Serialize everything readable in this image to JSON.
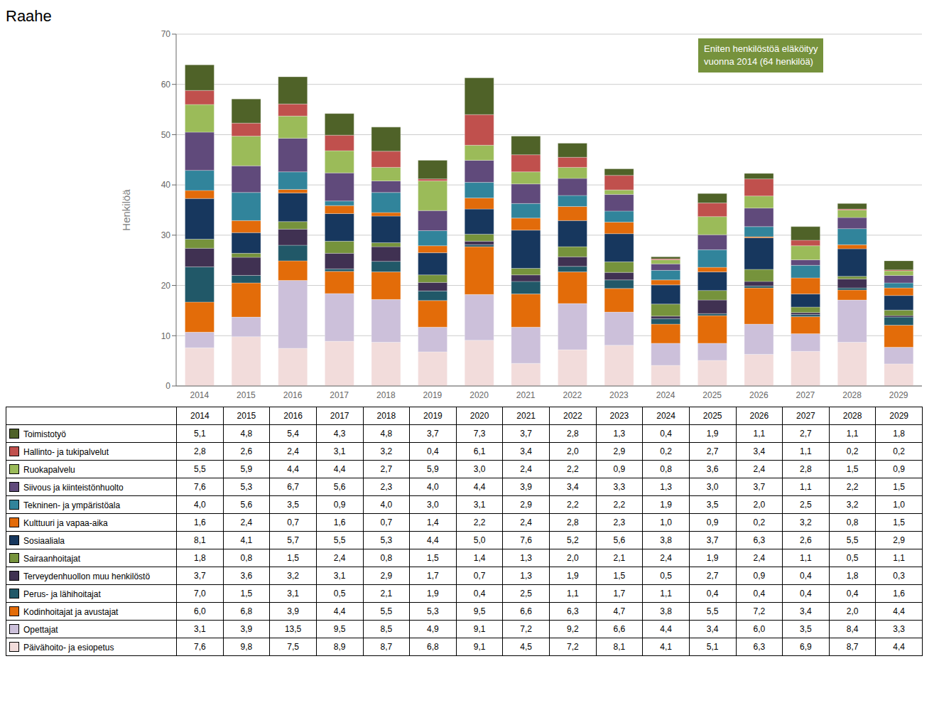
{
  "chart_data": {
    "type": "bar",
    "stacked": true,
    "title": "Raahe",
    "ylabel": "Henkilöä",
    "grid": true,
    "ylim": [
      0,
      70
    ],
    "yticks": [
      0,
      10,
      20,
      30,
      40,
      50,
      60,
      70
    ],
    "categories": [
      "2014",
      "2015",
      "2016",
      "2017",
      "2018",
      "2019",
      "2020",
      "2021",
      "2022",
      "2023",
      "2024",
      "2025",
      "2026",
      "2027",
      "2028",
      "2029"
    ],
    "annotations": [
      {
        "text": "Eniten henkilöstöä eläköityy\nvuonna 2014 (64 henkilöä)",
        "color": "#76923C"
      }
    ],
    "series": [
      {
        "name": "Toimistotyö",
        "color": "#4F6228",
        "values": [
          5.1,
          4.8,
          5.4,
          4.3,
          4.8,
          3.7,
          7.3,
          3.7,
          2.8,
          1.3,
          0.4,
          1.9,
          1.1,
          2.7,
          1.1,
          1.8
        ],
        "value_labels": [
          "5,1",
          "4,8",
          "5,4",
          "4,3",
          "4,8",
          "3,7",
          "7,3",
          "3,7",
          "2,8",
          "1,3",
          "0,4",
          "1,9",
          "1,1",
          "2,7",
          "1,1",
          "1,8"
        ]
      },
      {
        "name": "Hallinto- ja tukipalvelut",
        "color": "#C0504D",
        "values": [
          2.8,
          2.6,
          2.4,
          3.1,
          3.2,
          0.4,
          6.1,
          3.4,
          2.0,
          2.9,
          0.2,
          2.7,
          3.4,
          1.1,
          0.2,
          0.2
        ],
        "value_labels": [
          "2,8",
          "2,6",
          "2,4",
          "3,1",
          "3,2",
          "0,4",
          "6,1",
          "3,4",
          "2,0",
          "2,9",
          "0,2",
          "2,7",
          "3,4",
          "1,1",
          "0,2",
          "0,2"
        ]
      },
      {
        "name": "Ruokapalvelu",
        "color": "#9BBB59",
        "values": [
          5.5,
          5.9,
          4.4,
          4.4,
          2.7,
          5.9,
          3.0,
          2.4,
          2.2,
          0.9,
          0.8,
          3.6,
          2.4,
          2.8,
          1.5,
          0.9
        ],
        "value_labels": [
          "5,5",
          "5,9",
          "4,4",
          "4,4",
          "2,7",
          "5,9",
          "3,0",
          "2,4",
          "2,2",
          "0,9",
          "0,8",
          "3,6",
          "2,4",
          "2,8",
          "1,5",
          "0,9"
        ]
      },
      {
        "name": "Siivous ja kiinteistönhuolto",
        "color": "#604A7B",
        "values": [
          7.6,
          5.3,
          6.7,
          5.6,
          2.3,
          4.0,
          4.4,
          3.9,
          3.4,
          3.3,
          1.3,
          3.0,
          3.7,
          1.1,
          2.2,
          1.5
        ],
        "value_labels": [
          "7,6",
          "5,3",
          "6,7",
          "5,6",
          "2,3",
          "4,0",
          "4,4",
          "3,9",
          "3,4",
          "3,3",
          "1,3",
          "3,0",
          "3,7",
          "1,1",
          "2,2",
          "1,5"
        ]
      },
      {
        "name": "Tekninen- ja ympäristöala",
        "color": "#31849B",
        "values": [
          4.0,
          5.6,
          3.5,
          0.9,
          4.0,
          3.0,
          3.1,
          2.9,
          2.2,
          2.2,
          1.9,
          3.5,
          2.0,
          2.5,
          3.2,
          1.0
        ],
        "value_labels": [
          "4,0",
          "5,6",
          "3,5",
          "0,9",
          "4,0",
          "3,0",
          "3,1",
          "2,9",
          "2,2",
          "2,2",
          "1,9",
          "3,5",
          "2,0",
          "2,5",
          "3,2",
          "1,0"
        ]
      },
      {
        "name": "Kulttuuri ja vapaa-aika",
        "color": "#E26B0A",
        "values": [
          1.6,
          2.4,
          0.7,
          1.6,
          0.7,
          1.4,
          2.2,
          2.4,
          2.8,
          2.3,
          1.0,
          0.9,
          0.2,
          3.2,
          0.8,
          1.5
        ],
        "value_labels": [
          "1,6",
          "2,4",
          "0,7",
          "1,6",
          "0,7",
          "1,4",
          "2,2",
          "2,4",
          "2,8",
          "2,3",
          "1,0",
          "0,9",
          "0,2",
          "3,2",
          "0,8",
          "1,5"
        ]
      },
      {
        "name": "Sosiaaliala",
        "color": "#17375E",
        "values": [
          8.1,
          4.1,
          5.7,
          5.5,
          5.3,
          4.4,
          5.0,
          7.6,
          5.2,
          5.6,
          3.8,
          3.7,
          6.3,
          2.6,
          5.5,
          2.9
        ],
        "value_labels": [
          "8,1",
          "4,1",
          "5,7",
          "5,5",
          "5,3",
          "4,4",
          "5,0",
          "7,6",
          "5,2",
          "5,6",
          "3,8",
          "3,7",
          "6,3",
          "2,6",
          "5,5",
          "2,9"
        ]
      },
      {
        "name": "Sairaanhoitajat",
        "color": "#76933C",
        "values": [
          1.8,
          0.8,
          1.5,
          2.4,
          0.8,
          1.5,
          1.4,
          1.3,
          2.0,
          2.1,
          2.4,
          1.9,
          2.4,
          1.1,
          0.5,
          1.1
        ],
        "value_labels": [
          "1,8",
          "0,8",
          "1,5",
          "2,4",
          "0,8",
          "1,5",
          "1,4",
          "1,3",
          "2,0",
          "2,1",
          "2,4",
          "1,9",
          "2,4",
          "1,1",
          "0,5",
          "1,1"
        ]
      },
      {
        "name": "Terveydenhuollon muu henkilöstö",
        "color": "#403152",
        "values": [
          3.7,
          3.6,
          3.2,
          3.1,
          2.9,
          1.7,
          0.7,
          1.3,
          1.9,
          1.5,
          0.5,
          2.7,
          0.9,
          0.4,
          1.8,
          0.3
        ],
        "value_labels": [
          "3,7",
          "3,6",
          "3,2",
          "3,1",
          "2,9",
          "1,7",
          "0,7",
          "1,3",
          "1,9",
          "1,5",
          "0,5",
          "2,7",
          "0,9",
          "0,4",
          "1,8",
          "0,3"
        ]
      },
      {
        "name": "Perus- ja lähihoitajat",
        "color": "#215868",
        "values": [
          7.0,
          1.5,
          3.1,
          0.5,
          2.1,
          1.9,
          0.4,
          2.5,
          1.1,
          1.7,
          1.1,
          0.4,
          0.4,
          0.4,
          0.4,
          1.6
        ],
        "value_labels": [
          "7,0",
          "1,5",
          "3,1",
          "0,5",
          "2,1",
          "1,9",
          "0,4",
          "2,5",
          "1,1",
          "1,7",
          "1,1",
          "0,4",
          "0,4",
          "0,4",
          "0,4",
          "1,6"
        ]
      },
      {
        "name": "Kodinhoitajat ja avustajat",
        "color": "#E36C09",
        "values": [
          6.0,
          6.8,
          3.9,
          4.4,
          5.5,
          5.3,
          9.5,
          6.6,
          6.3,
          4.7,
          3.8,
          5.5,
          7.2,
          3.4,
          2.0,
          4.4
        ],
        "value_labels": [
          "6,0",
          "6,8",
          "3,9",
          "4,4",
          "5,5",
          "5,3",
          "9,5",
          "6,6",
          "6,3",
          "4,7",
          "3,8",
          "5,5",
          "7,2",
          "3,4",
          "2,0",
          "4,4"
        ]
      },
      {
        "name": "Opettajat",
        "color": "#CCC0DA",
        "values": [
          3.1,
          3.9,
          13.5,
          9.5,
          8.5,
          4.9,
          9.1,
          7.2,
          9.2,
          6.6,
          4.4,
          3.4,
          6.0,
          3.5,
          8.4,
          3.3
        ],
        "value_labels": [
          "3,1",
          "3,9",
          "13,5",
          "9,5",
          "8,5",
          "4,9",
          "9,1",
          "7,2",
          "9,2",
          "6,6",
          "4,4",
          "3,4",
          "6,0",
          "3,5",
          "8,4",
          "3,3"
        ]
      },
      {
        "name": "Päivähoito- ja esiopetus",
        "color": "#F2DCDB",
        "values": [
          7.6,
          9.8,
          7.5,
          8.9,
          8.7,
          6.8,
          9.1,
          4.5,
          7.2,
          8.1,
          4.1,
          5.1,
          6.3,
          6.9,
          8.7,
          4.4
        ],
        "value_labels": [
          "7,6",
          "9,8",
          "7,5",
          "8,9",
          "8,7",
          "6,8",
          "9,1",
          "4,5",
          "7,2",
          "8,1",
          "4,1",
          "5,1",
          "6,3",
          "6,9",
          "8,7",
          "4,4"
        ]
      }
    ]
  }
}
